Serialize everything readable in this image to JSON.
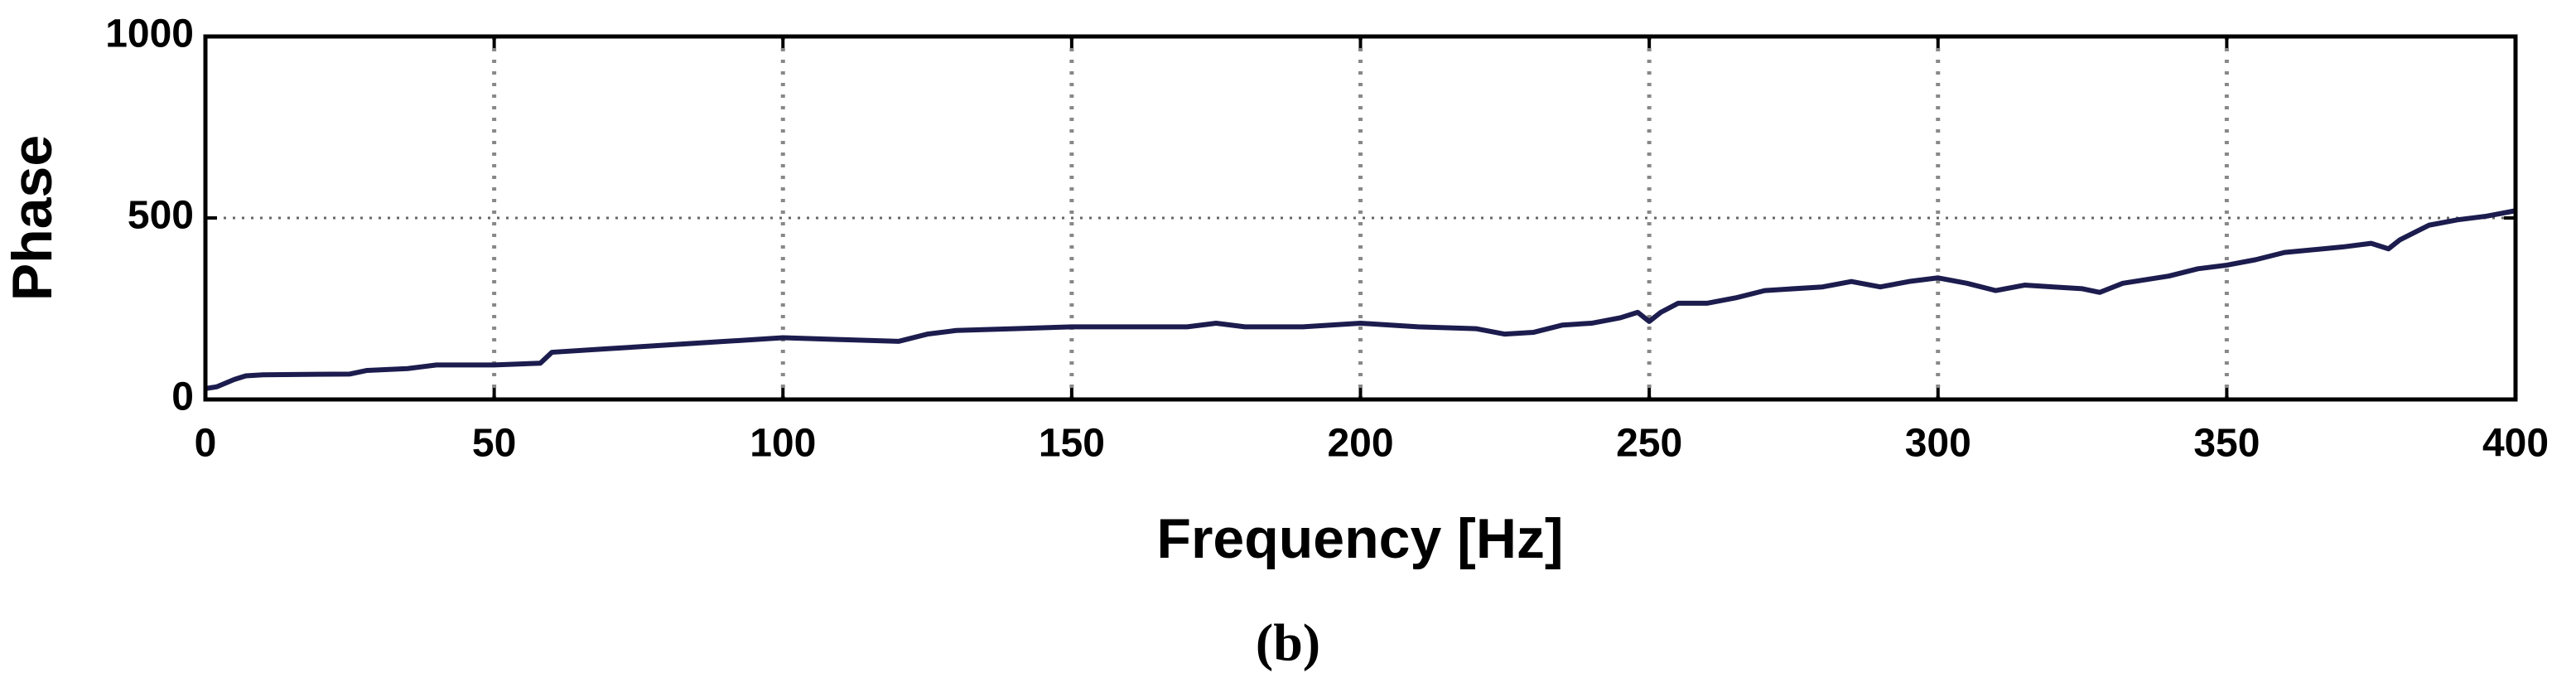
{
  "chart_data": {
    "type": "line",
    "xlabel": "Frequency [Hz]",
    "ylabel": "Phase",
    "caption": "(b)",
    "x": [
      0,
      2,
      5,
      7,
      10,
      25,
      28,
      35,
      40,
      50,
      58,
      60,
      70,
      80,
      90,
      100,
      110,
      120,
      125,
      130,
      140,
      150,
      160,
      170,
      175,
      180,
      190,
      200,
      210,
      220,
      225,
      230,
      235,
      240,
      245,
      248,
      250,
      252,
      255,
      260,
      265,
      270,
      280,
      285,
      290,
      295,
      300,
      305,
      310,
      315,
      320,
      325,
      328,
      332,
      340,
      345,
      350,
      355,
      360,
      370,
      375,
      378,
      380,
      385,
      390,
      395,
      400
    ],
    "series": [
      {
        "color": "#1c1c4e",
        "values": [
          30,
          35,
          55,
          65,
          68,
          70,
          80,
          85,
          95,
          95,
          100,
          130,
          140,
          150,
          160,
          170,
          165,
          160,
          180,
          190,
          195,
          200,
          200,
          200,
          210,
          200,
          200,
          210,
          200,
          195,
          180,
          185,
          205,
          210,
          225,
          240,
          215,
          240,
          265,
          265,
          280,
          300,
          310,
          325,
          310,
          325,
          335,
          320,
          300,
          315,
          310,
          305,
          295,
          320,
          340,
          360,
          370,
          385,
          405,
          420,
          430,
          415,
          440,
          480,
          495,
          505,
          520
        ]
      }
    ],
    "xlim": [
      0,
      400
    ],
    "xticks": [
      0,
      50,
      100,
      150,
      200,
      250,
      300,
      350,
      400
    ],
    "ylim": [
      0,
      1000
    ],
    "yticks": [
      0,
      500,
      1000
    ],
    "grid": true
  }
}
